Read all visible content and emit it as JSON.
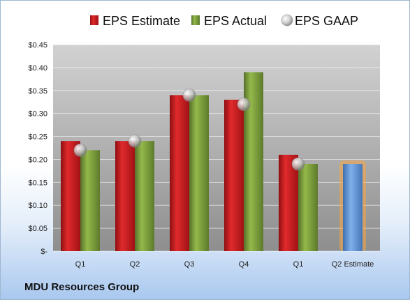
{
  "company": "MDU Resources Group",
  "chart_data": {
    "type": "bar",
    "categories": [
      "Q1",
      "Q2",
      "Q3",
      "Q4",
      "Q1",
      "Q2 Estimate"
    ],
    "series": [
      {
        "name": "EPS Estimate",
        "values": [
          0.24,
          0.24,
          0.34,
          0.33,
          0.21,
          null
        ],
        "color": "#c0191b"
      },
      {
        "name": "EPS Actual",
        "values": [
          0.22,
          0.24,
          0.34,
          0.39,
          0.19,
          null
        ],
        "color": "#7a9a36"
      },
      {
        "name": "EPS GAAP",
        "values": [
          0.22,
          0.24,
          0.34,
          0.32,
          0.19,
          null
        ],
        "marker": "sphere",
        "color": "#c8c8c8"
      }
    ],
    "estimate_bar": {
      "category": "Q2 Estimate",
      "value": 0.19,
      "color": "#5b8fd0",
      "glow": "#f5a540"
    },
    "ylim": [
      0,
      0.45
    ],
    "yticks": [
      0,
      0.05,
      0.1,
      0.15,
      0.2,
      0.25,
      0.3,
      0.35,
      0.4,
      0.45
    ],
    "ytick_labels": [
      "$-",
      "$0.05",
      "$0.10",
      "$0.15",
      "$0.20",
      "$0.25",
      "$0.30",
      "$0.35",
      "$0.40",
      "$0.45"
    ],
    "legend_position": "top",
    "grid": true
  }
}
